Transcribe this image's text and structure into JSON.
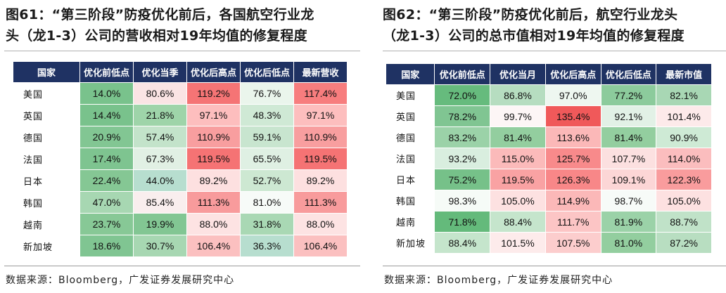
{
  "panels": [
    {
      "title_line1": "图61：“第三阶段”防疫优化前后，各国航空行业龙",
      "title_line2": "头（龙1-3）公司的营收相对19年均值的修复程度",
      "headers": [
        "国家",
        "优化前低点",
        "优化当季",
        "优化后高点",
        "优化后低点",
        "最新营收"
      ],
      "rows": [
        {
          "country": "美国",
          "values": [
            "14.0%",
            "80.6%",
            "119.2%",
            "76.7%",
            "117.4%"
          ]
        },
        {
          "country": "英国",
          "values": [
            "14.4%",
            "21.8%",
            "97.1%",
            "48.3%",
            "97.1%"
          ]
        },
        {
          "country": "德国",
          "values": [
            "20.9%",
            "57.4%",
            "110.9%",
            "59.1%",
            "110.9%"
          ]
        },
        {
          "country": "法国",
          "values": [
            "17.4%",
            "67.3%",
            "119.5%",
            "65.5%",
            "119.5%"
          ]
        },
        {
          "country": "日本",
          "values": [
            "22.4%",
            "44.0%",
            "89.2%",
            "52.7%",
            "89.2%"
          ]
        },
        {
          "country": "韩国",
          "values": [
            "47.0%",
            "85.4%",
            "111.3%",
            "81.0%",
            "111.3%"
          ]
        },
        {
          "country": "越南",
          "values": [
            "23.7%",
            "19.9%",
            "88.0%",
            "31.8%",
            "88.0%"
          ]
        },
        {
          "country": "新加坡",
          "values": [
            "18.6%",
            "30.7%",
            "106.4%",
            "36.3%",
            "106.4%"
          ]
        }
      ],
      "colors": [
        [
          "#79c28c",
          "#fae4e4",
          "#f57475",
          "#eaf5ec",
          "#f77d7e"
        ],
        [
          "#79c28c",
          "#9ed4a9",
          "#fdbebe",
          "#cfe9d5",
          "#fdbebe"
        ],
        [
          "#82c693",
          "#c3e3ca",
          "#f89e9f",
          "#c8e5cf",
          "#f89e9f"
        ],
        [
          "#7ec490",
          "#e1f0e4",
          "#f57374",
          "#dff0e3",
          "#f57374"
        ],
        [
          "#85c794",
          "#b7decf",
          "#fde0e0",
          "#cde8d2",
          "#fde0e0"
        ],
        [
          "#a7d7b2",
          "#f9eeee",
          "#f89b9c",
          "#f7fbf8",
          "#f89b9c"
        ],
        [
          "#87c896",
          "#82c693",
          "#fde3e3",
          "#a9d8b4",
          "#fde3e3"
        ],
        [
          "#80c592",
          "#a7d7b2",
          "#fbc0c0",
          "#b7decf",
          "#fbc0c0"
        ]
      ],
      "source": "数据来源：Bloomberg，广发证券发展研究中心"
    },
    {
      "title_line1": "图62：“第三阶段”防疫优化前后，航空行业龙头",
      "title_line2": "（龙1-3）公司的总市值相对19年均值的修复程度",
      "headers": [
        "国家",
        "优化前低点",
        "优化当月",
        "优化后高点",
        "优化后低点",
        "最新市值"
      ],
      "rows": [
        {
          "country": "美国",
          "values": [
            "72.0%",
            "86.8%",
            "97.0%",
            "77.2%",
            "82.1%"
          ]
        },
        {
          "country": "英国",
          "values": [
            "78.2%",
            "99.7%",
            "135.4%",
            "92.1%",
            "101.4%"
          ]
        },
        {
          "country": "德国",
          "values": [
            "83.2%",
            "81.4%",
            "113.6%",
            "81.4%",
            "90.9%"
          ]
        },
        {
          "country": "法国",
          "values": [
            "93.2%",
            "115.0%",
            "125.7%",
            "107.7%",
            "114.0%"
          ]
        },
        {
          "country": "日本",
          "values": [
            "75.2%",
            "119.5%",
            "126.3%",
            "109.1%",
            "122.3%"
          ]
        },
        {
          "country": "韩国",
          "values": [
            "98.3%",
            "105.0%",
            "114.9%",
            "98.7%",
            "105.0%"
          ]
        },
        {
          "country": "越南",
          "values": [
            "71.8%",
            "88.4%",
            "111.7%",
            "81.9%",
            "88.7%"
          ]
        },
        {
          "country": "新加坡",
          "values": [
            "88.4%",
            "101.5%",
            "107.5%",
            "81.0%",
            "87.2%"
          ]
        }
      ],
      "colors": [
        [
          "#66bb7d",
          "#b6ddc0",
          "#eef7f0",
          "#8ccb9c",
          "#a8d7b4"
        ],
        [
          "#80c592",
          "#fdf6f6",
          "#f0595a",
          "#e2f1e6",
          "#fdeaea"
        ],
        [
          "#9bd2a8",
          "#93ce9f",
          "#fbb8b8",
          "#93ce9f",
          "#ceead5"
        ],
        [
          "#d9eedf",
          "#fbbaba",
          "#f88a8b",
          "#fce0e0",
          "#fbbdbe"
        ],
        [
          "#76c189",
          "#f9a2a3",
          "#f88788",
          "#fcd6d6",
          "#f99c9d"
        ],
        [
          "#f6fbf7",
          "#fde1e1",
          "#fbb8b8",
          "#f7fbf8",
          "#fde1e1"
        ],
        [
          "#64ba7b",
          "#c5e5cc",
          "#fcc5c5",
          "#9bd2a8",
          "#c0e2c8"
        ],
        [
          "#c5e5cc",
          "#fdebeb",
          "#fccdcd",
          "#93ce9f",
          "#b8dec1"
        ]
      ],
      "source": "数据来源：Bloomberg，广发证券发展研究中心"
    }
  ]
}
